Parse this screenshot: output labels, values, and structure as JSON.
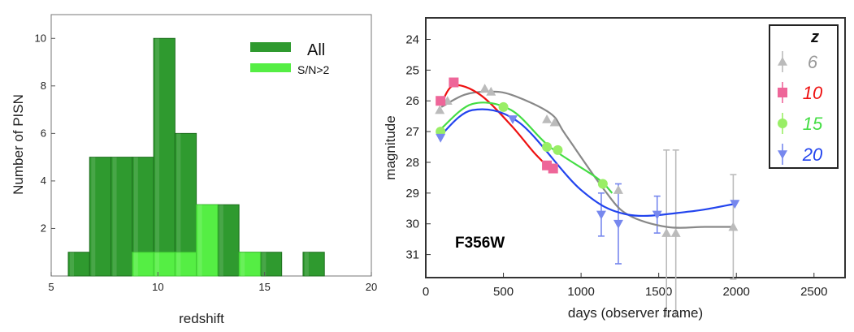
{
  "chart_data": [
    {
      "type": "bar",
      "xlabel": "redshift",
      "ylabel": "Number of PISN",
      "xlim": [
        5,
        20
      ],
      "ylim": [
        0,
        11
      ],
      "xticks": [
        5,
        10,
        15,
        20
      ],
      "yticks": [
        2,
        4,
        6,
        8,
        10
      ],
      "legend": {
        "position": "top-right",
        "entries": [
          "All",
          "S/N>2"
        ]
      },
      "bin_width": 1,
      "series": [
        {
          "name": "All",
          "color": "#2f9a2f",
          "bins": [
            {
              "x0": 5.8,
              "value": 1
            },
            {
              "x0": 6.8,
              "value": 5
            },
            {
              "x0": 7.8,
              "value": 5
            },
            {
              "x0": 8.8,
              "value": 5
            },
            {
              "x0": 9.8,
              "value": 10
            },
            {
              "x0": 10.8,
              "value": 6
            },
            {
              "x0": 11.8,
              "value": 3
            },
            {
              "x0": 12.8,
              "value": 3
            },
            {
              "x0": 13.8,
              "value": 1
            },
            {
              "x0": 14.8,
              "value": 1
            },
            {
              "x0": 16.8,
              "value": 1
            }
          ]
        },
        {
          "name": "S/N>2",
          "color": "#55ee44",
          "bins": [
            {
              "x0": 8.8,
              "value": 1
            },
            {
              "x0": 9.8,
              "value": 1
            },
            {
              "x0": 10.8,
              "value": 1
            },
            {
              "x0": 11.8,
              "value": 3
            },
            {
              "x0": 13.8,
              "value": 1
            }
          ]
        }
      ]
    },
    {
      "type": "line",
      "annotation": "F356W",
      "xlabel": "days (observer frame)",
      "ylabel": "magnitude",
      "xlim": [
        0,
        2700
      ],
      "ylim": [
        31.75,
        23.3
      ],
      "y_inverted": true,
      "xticks": [
        0,
        500,
        1000,
        1500,
        2000,
        2500
      ],
      "yticks": [
        24,
        25,
        26,
        27,
        28,
        29,
        30,
        31
      ],
      "legend": {
        "position": "top-right",
        "title": "z",
        "entries": [
          "6",
          "10",
          "15",
          "20"
        ]
      },
      "series": [
        {
          "name": "6",
          "color": "#888888",
          "marker_color": "#bbbbbb",
          "marker": "triangle-up",
          "x": [
            100,
            250,
            400,
            550,
            800,
            900,
            1150,
            1300,
            1550,
            1800,
            1980
          ],
          "y": [
            26.2,
            25.8,
            25.7,
            25.8,
            26.4,
            27.1,
            28.9,
            29.7,
            30.1,
            30.1,
            30.1
          ],
          "points": [
            {
              "x": 90,
              "y": 26.3
            },
            {
              "x": 140,
              "y": 26.0
            },
            {
              "x": 380,
              "y": 25.6
            },
            {
              "x": 420,
              "y": 25.7
            },
            {
              "x": 780,
              "y": 26.6
            },
            {
              "x": 830,
              "y": 26.7
            },
            {
              "x": 1240,
              "y": 28.9
            },
            {
              "x": 1550,
              "y": 30.3,
              "err": 2.7
            },
            {
              "x": 1610,
              "y": 30.3,
              "err": 2.7
            },
            {
              "x": 1980,
              "y": 30.1,
              "err": 1.7
            }
          ]
        },
        {
          "name": "10",
          "color": "#ee1111",
          "marker_color": "#ee6699",
          "marker": "square",
          "x": [
            100,
            180,
            350,
            550,
            700,
            820
          ],
          "y": [
            26.1,
            25.5,
            25.8,
            26.8,
            27.7,
            28.3
          ],
          "points": [
            {
              "x": 95,
              "y": 26.0
            },
            {
              "x": 180,
              "y": 25.4
            },
            {
              "x": 780,
              "y": 28.1
            },
            {
              "x": 820,
              "y": 28.2
            }
          ]
        },
        {
          "name": "15",
          "color": "#44dd44",
          "marker_color": "#99ee66",
          "marker": "circle",
          "x": [
            100,
            300,
            550,
            800,
            1100,
            1200
          ],
          "y": [
            26.9,
            26.1,
            26.3,
            27.5,
            28.5,
            29.0
          ],
          "points": [
            {
              "x": 95,
              "y": 27.0
            },
            {
              "x": 500,
              "y": 26.2
            },
            {
              "x": 780,
              "y": 27.5
            },
            {
              "x": 850,
              "y": 27.6
            },
            {
              "x": 1140,
              "y": 28.7
            }
          ]
        },
        {
          "name": "20",
          "color": "#2244ee",
          "marker_color": "#7788ee",
          "marker": "triangle-down",
          "x": [
            100,
            300,
            600,
            1000,
            1300,
            1700,
            1990
          ],
          "y": [
            27.1,
            26.3,
            26.7,
            28.9,
            29.7,
            29.6,
            29.35
          ],
          "points": [
            {
              "x": 95,
              "y": 27.2
            },
            {
              "x": 560,
              "y": 26.6
            },
            {
              "x": 1130,
              "y": 29.7,
              "err": 0.7
            },
            {
              "x": 1240,
              "y": 30.0,
              "err": 1.3
            },
            {
              "x": 1490,
              "y": 29.7,
              "err": 0.6
            },
            {
              "x": 1990,
              "y": 29.35
            }
          ]
        }
      ]
    }
  ]
}
